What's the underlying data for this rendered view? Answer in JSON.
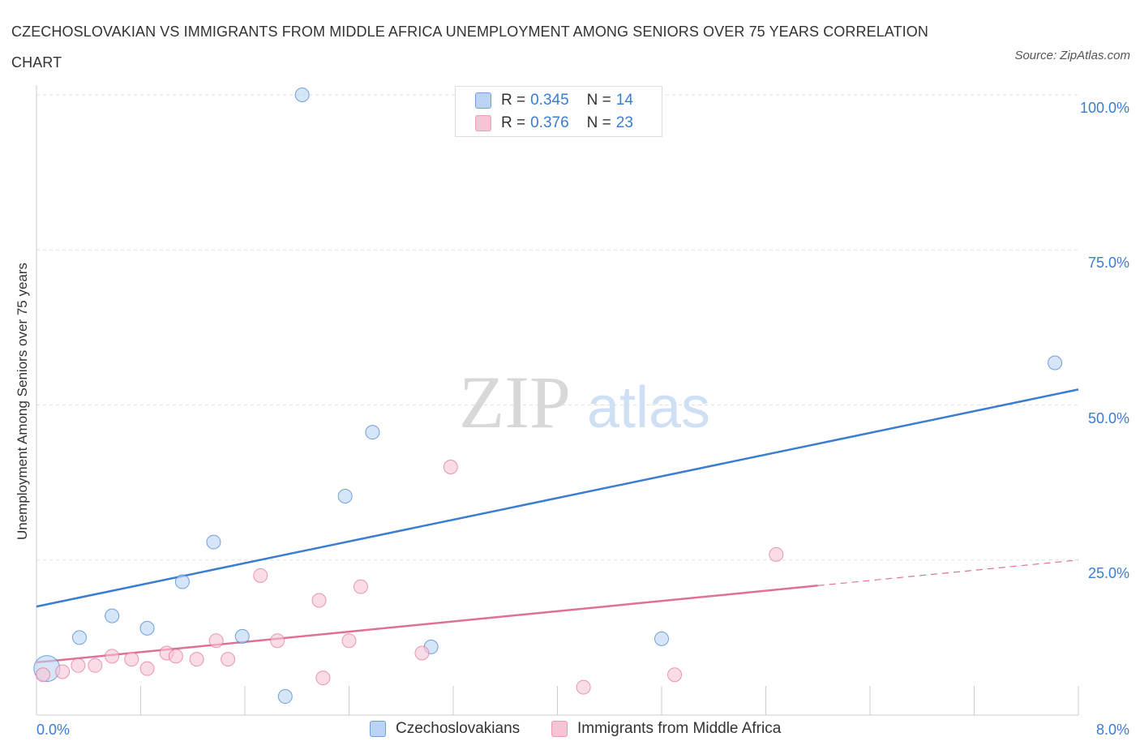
{
  "chart_data": {
    "type": "scatter",
    "title": "CZECHOSLOVAKIAN VS IMMIGRANTS FROM MIDDLE AFRICA UNEMPLOYMENT AMONG SENIORS OVER 75 YEARS CORRELATION CHART",
    "source": "Source: ZipAtlas.com",
    "watermark": {
      "zip": "ZIP",
      "atlas": "atlas"
    },
    "ylabel": "Unemployment Among Seniors over 75 years",
    "xlabel": "",
    "xlim": [
      0,
      8
    ],
    "ylim": [
      0,
      100
    ],
    "x_tick_labels": [
      "0.0%",
      "8.0%"
    ],
    "y_ticks": [
      25,
      50,
      75,
      100
    ],
    "y_tick_labels": [
      "25.0%",
      "50.0%",
      "75.0%",
      "100.0%"
    ],
    "grid": true,
    "legend_top": [
      {
        "r_label": "R =",
        "r_value": "0.345",
        "n_label": "N =",
        "n_value": "14"
      },
      {
        "r_label": "R =",
        "r_value": "0.376",
        "n_label": "N =",
        "n_value": "23"
      }
    ],
    "series": [
      {
        "name": "Czechoslovakians",
        "color": "#3a7dd1",
        "fill": "#bcd4f3",
        "points": [
          [
            0.08,
            7.5
          ],
          [
            0.33,
            12.5
          ],
          [
            0.58,
            16.0
          ],
          [
            0.85,
            14.0
          ],
          [
            1.12,
            21.5
          ],
          [
            1.36,
            27.9
          ],
          [
            1.58,
            12.7
          ],
          [
            1.91,
            3.0
          ],
          [
            2.04,
            100.0
          ],
          [
            2.37,
            35.3
          ],
          [
            2.58,
            45.6
          ],
          [
            3.03,
            11.0
          ],
          [
            4.8,
            12.3
          ],
          [
            7.82,
            56.8
          ]
        ],
        "trendline": {
          "x_start": 0,
          "y_start": 17.5,
          "x_end": 8,
          "y_end": 52.5,
          "dashed_from": null
        }
      },
      {
        "name": "Immigrants from Middle Africa",
        "color": "#e0709a",
        "fill": "#f6c5d5",
        "points": [
          [
            0.05,
            6.5
          ],
          [
            0.2,
            7.0
          ],
          [
            0.32,
            8.0
          ],
          [
            0.45,
            8.0
          ],
          [
            0.58,
            9.5
          ],
          [
            0.73,
            9.0
          ],
          [
            0.85,
            7.5
          ],
          [
            1.0,
            10.0
          ],
          [
            1.07,
            9.5
          ],
          [
            1.23,
            9.0
          ],
          [
            1.38,
            12.0
          ],
          [
            1.47,
            9.0
          ],
          [
            1.72,
            22.5
          ],
          [
            1.85,
            12.0
          ],
          [
            2.17,
            18.5
          ],
          [
            2.2,
            6.0
          ],
          [
            2.4,
            12.0
          ],
          [
            2.49,
            20.7
          ],
          [
            2.96,
            10.0
          ],
          [
            3.18,
            40.0
          ],
          [
            4.2,
            4.5
          ],
          [
            4.9,
            6.5
          ],
          [
            5.68,
            25.9
          ]
        ],
        "trendline": {
          "x_start": 0,
          "y_start": 8.5,
          "x_end": 8,
          "y_end": 25.0,
          "dashed_from": 6.0
        }
      }
    ]
  }
}
